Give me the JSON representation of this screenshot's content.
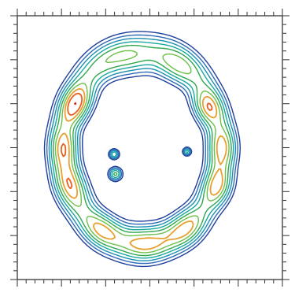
{
  "chart_data": {
    "type": "contour",
    "title": "",
    "xlabel": "",
    "ylabel": "",
    "tick_labels": false,
    "grid": false,
    "legend": "none",
    "x_major_ticks": 7,
    "x_minor_per_major": 5,
    "y_major_ticks": 7,
    "y_minor_per_major": 5,
    "colors": {
      "frame": "#444444",
      "level_colors": [
        "#1f3f9e",
        "#2f6bb8",
        "#1c8fb0",
        "#17a8a0",
        "#2fa84f",
        "#6cc04a",
        "#e8a030",
        "#e86020",
        "#d83020"
      ]
    },
    "ring": {
      "center": [
        0.47,
        0.5
      ],
      "radius_x": 0.3,
      "radius_y": 0.37,
      "width": 0.048
    },
    "peaks": [
      {
        "x": 0.245,
        "y": 0.655,
        "height": 1.0,
        "spread": 0.05
      },
      {
        "x": 0.695,
        "y": 0.645,
        "height": 0.85,
        "spread": 0.045
      },
      {
        "x": 0.22,
        "y": 0.36,
        "height": 0.6,
        "spread": 0.06
      },
      {
        "x": 0.76,
        "y": 0.35,
        "height": 0.55,
        "spread": 0.05
      },
      {
        "x": 0.48,
        "y": 0.15,
        "height": 0.55,
        "spread": 0.06
      },
      {
        "x": 0.44,
        "y": 0.8,
        "height": 0.45,
        "spread": 0.06
      },
      {
        "x": 0.19,
        "y": 0.5,
        "height": 0.4,
        "spread": 0.05
      },
      {
        "x": 0.775,
        "y": 0.5,
        "height": 0.35,
        "spread": 0.05
      },
      {
        "x": 0.33,
        "y": 0.2,
        "height": 0.35,
        "spread": 0.05
      },
      {
        "x": 0.63,
        "y": 0.2,
        "height": 0.35,
        "spread": 0.05
      },
      {
        "x": 0.58,
        "y": 0.78,
        "height": 0.35,
        "spread": 0.05
      }
    ],
    "blobs": [
      {
        "x": 0.365,
        "y": 0.475,
        "height": 0.55,
        "spread": 0.012
      },
      {
        "x": 0.37,
        "y": 0.4,
        "height": 0.6,
        "spread": 0.016
      },
      {
        "x": 0.64,
        "y": 0.485,
        "height": 0.5,
        "spread": 0.01
      }
    ],
    "levels": [
      0.12,
      0.2,
      0.3,
      0.42,
      0.55,
      0.7,
      0.85,
      1.0,
      1.2
    ]
  }
}
